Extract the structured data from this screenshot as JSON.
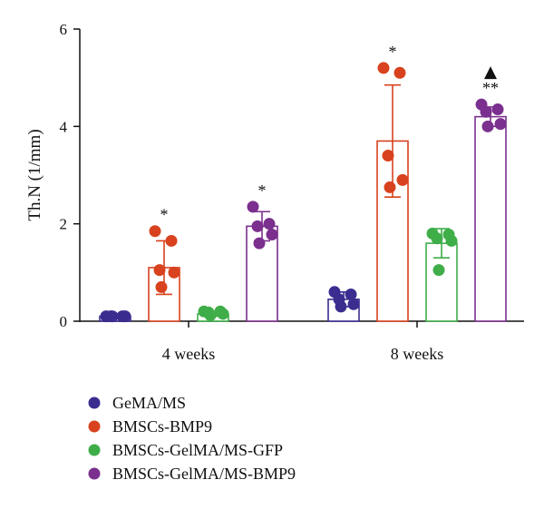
{
  "chart_data": {
    "type": "bar",
    "ylabel": "Th.N (1/mm)",
    "ylim": [
      0,
      6
    ],
    "yticks": [
      0,
      2,
      4,
      6
    ],
    "categories": [
      "4 weeks",
      "8 weeks"
    ],
    "legend_position": "bottom-left",
    "series": [
      {
        "name": "GeMA/MS",
        "color": "#3a2d8f",
        "values": [
          0.1,
          0.45
        ],
        "errors": [
          0.02,
          0.15
        ],
        "points": [
          [
            0.1,
            0.1,
            0.1,
            0.1,
            0.1
          ],
          [
            0.6,
            0.55,
            0.45,
            0.35,
            0.3
          ]
        ],
        "annotations": [
          "",
          ""
        ]
      },
      {
        "name": "BMSCs-BMP9",
        "color": "#d8421e",
        "values": [
          1.1,
          3.7
        ],
        "errors": [
          0.55,
          1.15
        ],
        "points": [
          [
            1.85,
            1.65,
            1.05,
            1.0,
            0.7
          ],
          [
            5.2,
            5.1,
            3.4,
            2.9,
            2.75
          ]
        ],
        "annotations": [
          "*",
          "*"
        ]
      },
      {
        "name": "BMSCs-GelMA/MS-GFP",
        "color": "#3fae49",
        "values": [
          0.15,
          1.6
        ],
        "errors": [
          0.05,
          0.3
        ],
        "points": [
          [
            0.2,
            0.2,
            0.18,
            0.15,
            0.12
          ],
          [
            1.8,
            1.78,
            1.7,
            1.65,
            1.05
          ]
        ],
        "annotations": [
          "",
          ""
        ]
      },
      {
        "name": "BMSCs-GelMA/MS-BMP9",
        "color": "#7b2f8e",
        "values": [
          1.95,
          4.2
        ],
        "errors": [
          0.3,
          0.2
        ],
        "points": [
          [
            2.35,
            2.0,
            1.95,
            1.78,
            1.6
          ],
          [
            4.45,
            4.35,
            4.3,
            4.05,
            4.0
          ]
        ],
        "annotations": [
          "*",
          "**"
        ],
        "markers": [
          "",
          "triangle"
        ]
      }
    ]
  }
}
